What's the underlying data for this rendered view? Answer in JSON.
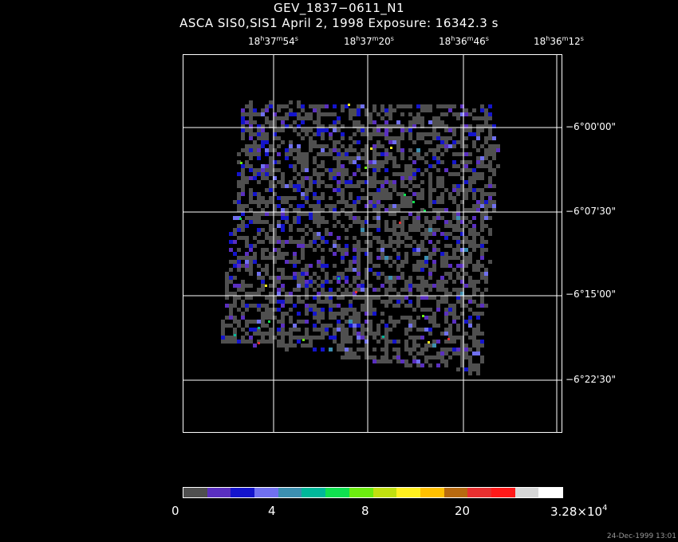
{
  "title": {
    "line1": "GEV_1837−0611_N1",
    "line2": "ASCA SIS0,SIS1 April 2, 1998 Exposure: 16342.3 s"
  },
  "ra_ticks": [
    {
      "h": "18",
      "m": "37",
      "s": "54"
    },
    {
      "h": "18",
      "m": "37",
      "s": "20"
    },
    {
      "h": "18",
      "m": "36",
      "s": "46"
    },
    {
      "h": "18",
      "m": "36",
      "s": "12"
    }
  ],
  "dec_ticks": [
    "−6°00'00\"",
    "−6°07'30\"",
    "−6°15'00\"",
    "−6°22'30\""
  ],
  "colorbar": {
    "colors": [
      "#4f4f4f",
      "#5a2fc0",
      "#1414cc",
      "#7070f0",
      "#3c8fb0",
      "#00b89a",
      "#10e050",
      "#6cec10",
      "#c0e010",
      "#fff020",
      "#ffc000",
      "#b86a10",
      "#e83030",
      "#ff1a1a",
      "#d8d8d8",
      "#ffffff"
    ],
    "labels": [
      {
        "text": "0"
      },
      {
        "text": "4"
      },
      {
        "text": "8"
      },
      {
        "text": "20"
      }
    ],
    "max_label_base": "3.28×10",
    "max_label_exp": "4"
  },
  "footer": "24-Dec-1999 13:01"
}
